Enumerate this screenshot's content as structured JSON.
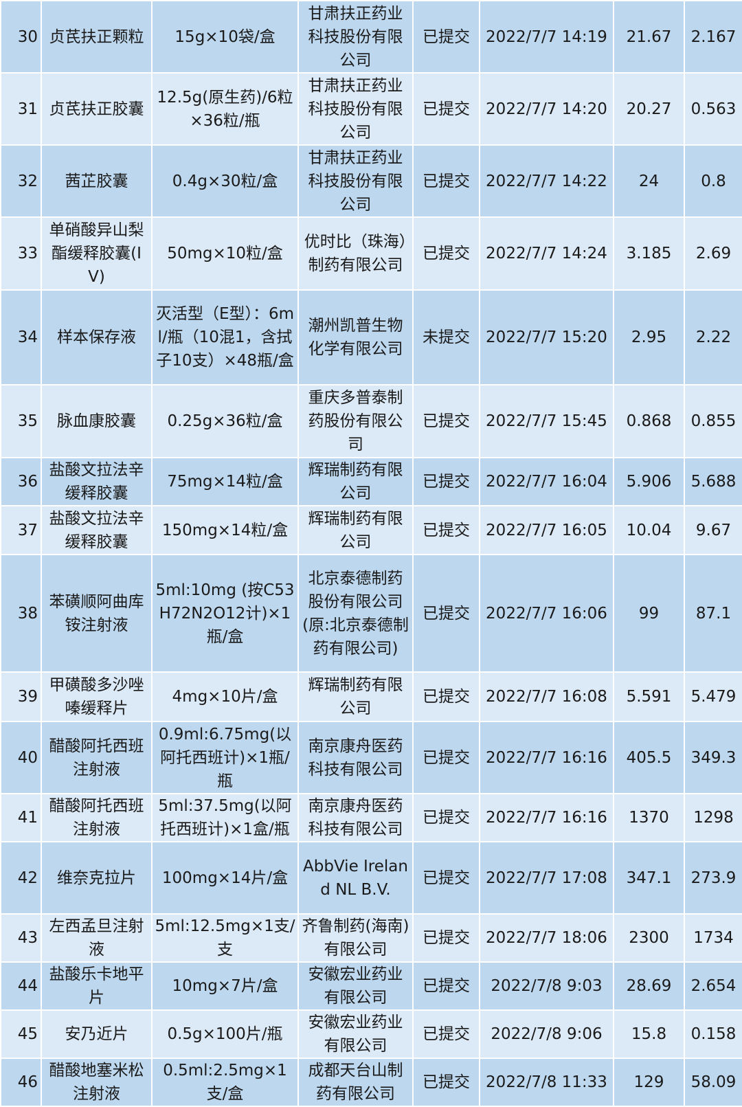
{
  "colors": {
    "row_dark": "#bdd7ee",
    "row_light": "#dce9f6",
    "grid": "#ffffff"
  },
  "rows": [
    {
      "no": "30",
      "name": "贞芪扶正颗粒",
      "spec": "15g×10袋/盒",
      "company": "甘肃扶正药业科技股份有限公司",
      "status": "已提交",
      "time": "2022/7/7 14:19",
      "v1": "21.67",
      "v2": "2.167"
    },
    {
      "no": "31",
      "name": "贞芪扶正胶囊",
      "spec": "12.5g(原生药)/6粒×36粒/瓶",
      "company": "甘肃扶正药业科技股份有限公司",
      "status": "已提交",
      "time": "2022/7/7 14:20",
      "v1": "20.27",
      "v2": "0.563"
    },
    {
      "no": "32",
      "name": "茜芷胶囊",
      "spec": "0.4g×30粒/盒",
      "company": "甘肃扶正药业科技股份有限公司",
      "status": "已提交",
      "time": "2022/7/7 14:22",
      "v1": "24",
      "v2": "0.8"
    },
    {
      "no": "33",
      "name": "单硝酸异山梨酯缓释胶囊(IV)",
      "spec": "50mg×10粒/盒",
      "company": "优时比（珠海）制药有限公司",
      "status": "已提交",
      "time": "2022/7/7 14:24",
      "v1": "3.185",
      "v2": "2.69"
    },
    {
      "no": "34",
      "name": "样本保存液",
      "spec": "灭活型（E型）：6ml/瓶（10混1，含拭子10支）×48瓶/盒",
      "company": "潮州凯普生物化学有限公司",
      "status": "未提交",
      "time": "2022/7/7 15:20",
      "v1": "2.95",
      "v2": "2.22"
    },
    {
      "no": "35",
      "name": "脉血康胶囊",
      "spec": "0.25g×36粒/盒",
      "company": "重庆多普泰制药股份有限公司",
      "status": "已提交",
      "time": "2022/7/7 15:45",
      "v1": "0.868",
      "v2": "0.855"
    },
    {
      "no": "36",
      "name": "盐酸文拉法辛缓释胶囊",
      "spec": "75mg×14粒/盒",
      "company": "辉瑞制药有限公司",
      "status": "已提交",
      "time": "2022/7/7 16:04",
      "v1": "5.906",
      "v2": "5.688"
    },
    {
      "no": "37",
      "name": "盐酸文拉法辛缓释胶囊",
      "spec": "150mg×14粒/盒",
      "company": "辉瑞制药有限公司",
      "status": "已提交",
      "time": "2022/7/7 16:05",
      "v1": "10.04",
      "v2": "9.67"
    },
    {
      "no": "38",
      "name": "苯磺顺阿曲库铵注射液",
      "spec": "5ml:10mg (按C53H72N2O12计)×1瓶/盒",
      "company": "北京泰德制药股份有限公司(原:北京泰德制药有限公司)",
      "status": "已提交",
      "time": "2022/7/7 16:06",
      "v1": "99",
      "v2": "87.1"
    },
    {
      "no": "39",
      "name": "甲磺酸多沙唑嗪缓释片",
      "spec": "4mg×10片/盒",
      "company": "辉瑞制药有限公司",
      "status": "已提交",
      "time": "2022/7/7 16:08",
      "v1": "5.591",
      "v2": "5.479"
    },
    {
      "no": "40",
      "name": "醋酸阿托西班注射液",
      "spec": "0.9ml:6.75mg(以阿托西班计)×1瓶/瓶",
      "company": "南京康舟医药科技有限公司",
      "status": "已提交",
      "time": "2022/7/7 16:16",
      "v1": "405.5",
      "v2": "349.3"
    },
    {
      "no": "41",
      "name": "醋酸阿托西班注射液",
      "spec": "5ml:37.5mg(以阿托西班计)×1盒/瓶",
      "company": "南京康舟医药科技有限公司",
      "status": "已提交",
      "time": "2022/7/7 16:16",
      "v1": "1370",
      "v2": "1298"
    },
    {
      "no": "42",
      "name": "维奈克拉片",
      "spec": "100mg×14片/盒",
      "company": "AbbVie Ireland NL B.V.",
      "status": "已提交",
      "time": "2022/7/7 17:08",
      "v1": "347.1",
      "v2": "273.9"
    },
    {
      "no": "43",
      "name": "左西孟旦注射液",
      "spec": "5ml:12.5mg×1支/支",
      "company": "齐鲁制药(海南)有限公司",
      "status": "已提交",
      "time": "2022/7/7 18:06",
      "v1": "2300",
      "v2": "1734"
    },
    {
      "no": "44",
      "name": "盐酸乐卡地平片",
      "spec": "10mg×7片/盒",
      "company": "安徽宏业药业有限公司",
      "status": "已提交",
      "time": "2022/7/8 9:03",
      "v1": "28.69",
      "v2": "2.654"
    },
    {
      "no": "45",
      "name": "安乃近片",
      "spec": "0.5g×100片/瓶",
      "company": "安徽宏业药业有限公司",
      "status": "已提交",
      "time": "2022/7/8 9:06",
      "v1": "15.8",
      "v2": "0.158"
    },
    {
      "no": "46",
      "name": "醋酸地塞米松注射液",
      "spec": "0.5ml:2.5mg×1支/盒",
      "company": "成都天台山制药有限公司",
      "status": "已提交",
      "time": "2022/7/8 11:33",
      "v1": "129",
      "v2": "58.09"
    }
  ]
}
